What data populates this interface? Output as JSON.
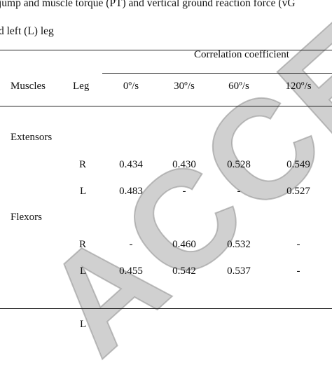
{
  "caption": {
    "line1": "jump and muscle torque (PT) and vertical ground reaction force (vG",
    "line2": "d left (L) leg"
  },
  "watermark": "ACCEPTED",
  "table": {
    "group_header": "Correlation coefficient",
    "col_muscles": "Muscles",
    "col_leg": "Leg",
    "speeds": [
      "0º/s",
      "30º/s",
      "60º/s",
      "120º/s"
    ],
    "groups": [
      {
        "name": "Extensors",
        "rows": [
          {
            "leg": "R",
            "values": [
              "0.434",
              "0.430",
              "0.528",
              "0.549"
            ]
          },
          {
            "leg": "L",
            "values": [
              "0.483",
              "-",
              "-",
              "0.527"
            ]
          }
        ]
      },
      {
        "name": "Flexors",
        "rows": [
          {
            "leg": "R",
            "values": [
              "-",
              "0.460",
              "0.532",
              "-"
            ]
          },
          {
            "leg": "L",
            "values": [
              "0.455",
              "0.542",
              "0.537",
              "-"
            ]
          }
        ]
      }
    ],
    "trailing_leg": "L"
  }
}
